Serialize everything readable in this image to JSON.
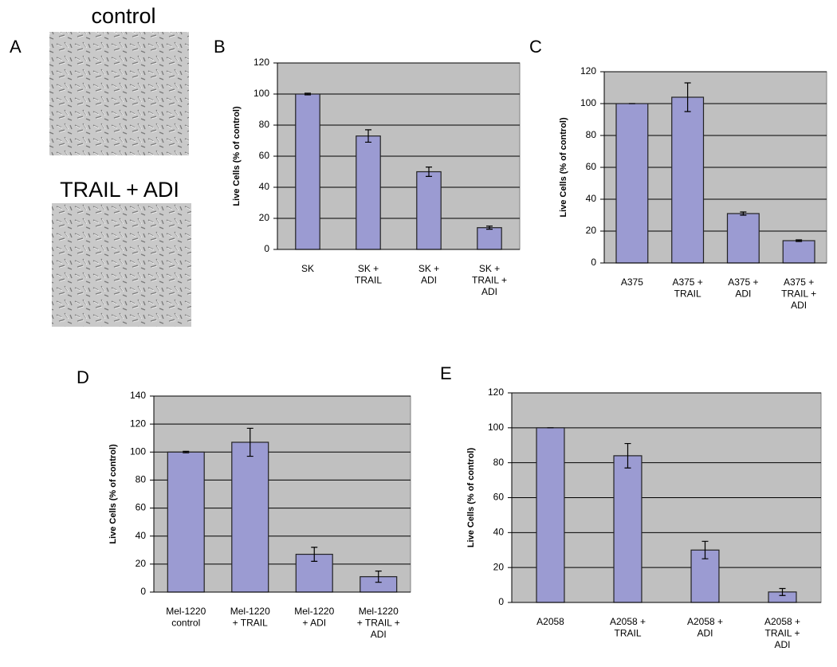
{
  "panel_a": {
    "label": "A",
    "captions": [
      "control",
      "TRAIL  + ADI"
    ]
  },
  "chart_data": [
    {
      "type": "bar",
      "label": "B",
      "y_label": "Live Cells (% of control)",
      "color": "#9b9bd2",
      "categories": [
        "SK",
        "SK +\nTRAIL",
        "SK +\nADI",
        "SK +\nTRAIL +\nADI"
      ],
      "values": [
        100,
        73,
        50,
        14
      ],
      "errors": [
        0.5,
        4,
        3,
        1
      ],
      "ylim": [
        0,
        120
      ],
      "yticks": [
        0,
        20,
        40,
        60,
        80,
        100,
        120
      ],
      "grid": true
    },
    {
      "type": "bar",
      "label": "C",
      "y_label": "Live Cells (% of control)",
      "color": "#9b9bd2",
      "categories": [
        "A375",
        "A375 +\nTRAIL",
        "A375 +\nADI",
        "A375 +\nTRAIL +\nADI"
      ],
      "values": [
        100,
        104,
        31,
        14
      ],
      "errors": [
        0,
        9,
        1,
        0.5
      ],
      "ylim": [
        0,
        120
      ],
      "yticks": [
        0,
        20,
        40,
        60,
        80,
        100,
        120
      ],
      "grid": true
    },
    {
      "type": "bar",
      "label": "D",
      "y_label": "Live Cells (% of control)",
      "color": "#9b9bd2",
      "categories": [
        "Mel-1220\ncontrol",
        "Mel-1220\n+ TRAIL",
        "Mel-1220\n+ ADI",
        "Mel-1220\n+ TRAIL +\nADI"
      ],
      "values": [
        100,
        107,
        27,
        11
      ],
      "errors": [
        0.5,
        10,
        5,
        4
      ],
      "ylim": [
        0,
        140
      ],
      "yticks": [
        0,
        20,
        40,
        60,
        80,
        100,
        120,
        140
      ],
      "grid": true
    },
    {
      "type": "bar",
      "label": "E",
      "y_label": "Live Cells (% of control)",
      "color": "#9b9bd2",
      "categories": [
        "A2058",
        "A2058 +\nTRAIL",
        "A2058 +\nADI",
        "A2058 +\nTRAIL +\nADI"
      ],
      "values": [
        100,
        84,
        30,
        6
      ],
      "errors": [
        0,
        7,
        5,
        2
      ],
      "ylim": [
        0,
        120
      ],
      "yticks": [
        0,
        20,
        40,
        60,
        80,
        100,
        120
      ],
      "grid": true
    }
  ]
}
